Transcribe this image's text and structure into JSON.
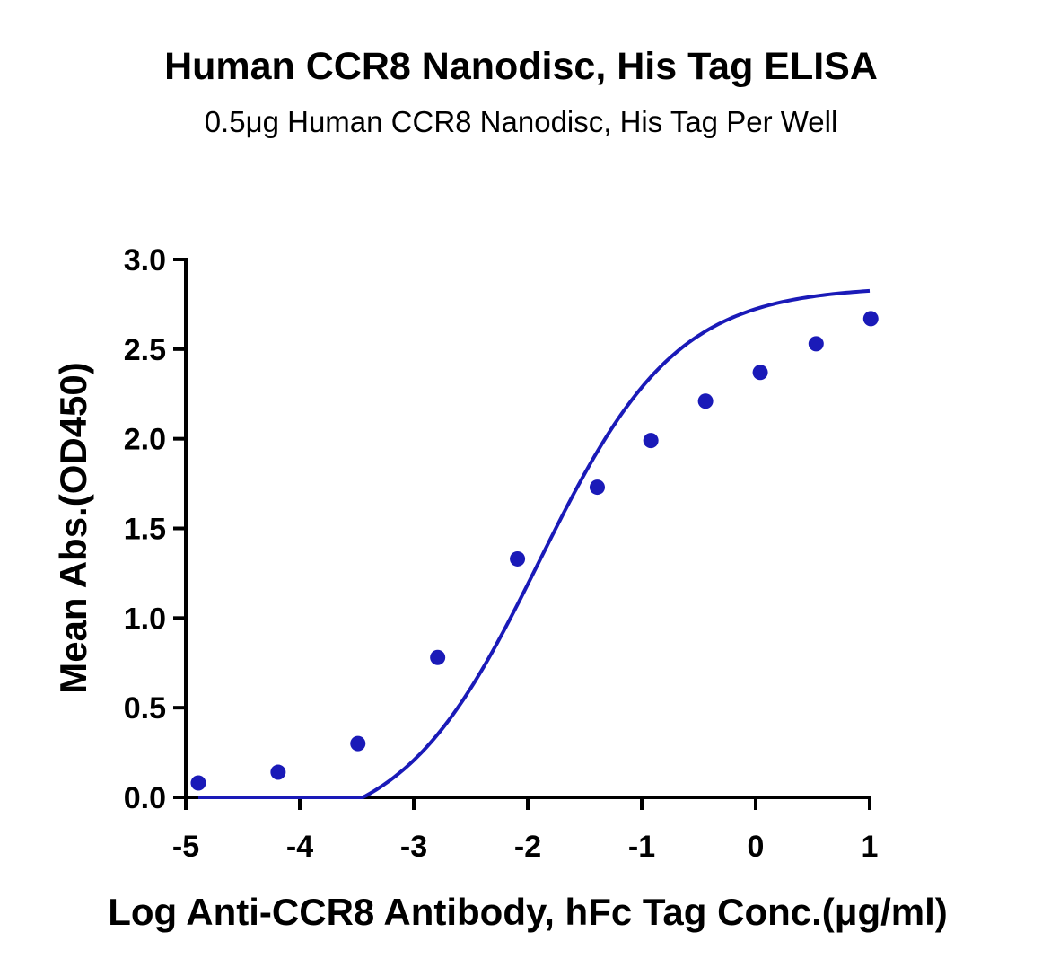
{
  "chart_data": {
    "type": "scatter",
    "title": "Human CCR8 Nanodisc, His Tag ELISA",
    "subtitle": "0.5μg Human CCR8 Nanodisc, His Tag Per Well",
    "xlabel": "Log  Anti-CCR8 Antibody, hFc Tag Conc.(μg/ml)",
    "ylabel": "Mean Abs.(OD450)",
    "xlim": [
      -5,
      1
    ],
    "ylim": [
      0,
      3.0
    ],
    "xticks": [
      "-5",
      "-4",
      "-3",
      "-2",
      "-1",
      "0",
      "1"
    ],
    "yticks": [
      "0.0",
      "0.5",
      "1.0",
      "1.5",
      "2.0",
      "2.5",
      "3.0"
    ],
    "grid": false,
    "color": "#1a1ab8",
    "series": [
      {
        "x": [
          -4.89,
          -4.19,
          -3.49,
          -2.79,
          -2.09,
          -1.39,
          -0.92,
          -0.44,
          0.04,
          0.53,
          1.01
        ],
        "y": [
          0.08,
          0.14,
          0.3,
          0.78,
          1.33,
          1.73,
          1.99,
          2.21,
          2.37,
          2.53,
          2.67
        ]
      }
    ],
    "fit_curve": {
      "type": "4PL",
      "bottom": -0.22,
      "top": 2.85,
      "log_ec50": -1.9,
      "hill": 0.72,
      "x_range": [
        -4.89,
        1.0
      ]
    }
  }
}
